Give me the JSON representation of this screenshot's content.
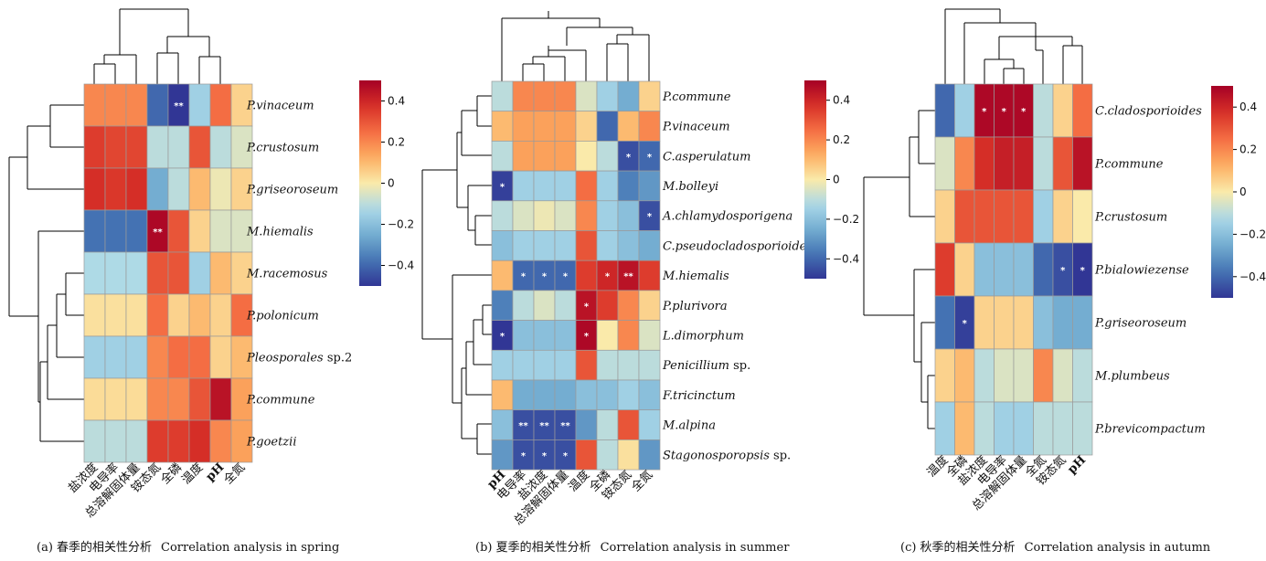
{
  "colorbar": {
    "ticks": [
      "0.4",
      "0.2",
      "0",
      "−0.2",
      "−0.4"
    ],
    "min": -0.5,
    "max": 0.5
  },
  "captions": [
    {
      "zh": "(a) 春季的相关性分析",
      "en": "Correlation analysis in spring"
    },
    {
      "zh": "(b) 夏季的相关性分析",
      "en": "Correlation analysis in summer"
    },
    {
      "zh": "(c) 秋季的相关性分析",
      "en": "Correlation analysis in autumn"
    }
  ],
  "chart_data": [
    {
      "type": "heatmap",
      "title": "",
      "x": [
        "盐浓度",
        "电导率",
        "总溶解固体量",
        "铵态氮",
        "全磷",
        "温度",
        "pH",
        "全氮"
      ],
      "y": [
        "P.vinaceum",
        "P.crustosum",
        "P.griseoroseum",
        "M.hiemalis",
        "M.racemosus",
        "P.polonicum",
        "Pleosporales sp.2",
        "P.commune",
        "P.goetzii"
      ],
      "values": [
        [
          0.2,
          0.2,
          0.2,
          -0.4,
          -0.5,
          -0.15,
          0.25,
          0.05
        ],
        [
          0.35,
          0.33,
          0.33,
          -0.1,
          -0.1,
          0.3,
          -0.1,
          -0.05
        ],
        [
          0.38,
          0.36,
          0.38,
          -0.25,
          -0.1,
          0.1,
          -0.02,
          0.05
        ],
        [
          -0.38,
          -0.38,
          -0.38,
          0.48,
          0.3,
          0.05,
          -0.05,
          -0.05
        ],
        [
          -0.12,
          -0.12,
          -0.12,
          0.3,
          0.3,
          -0.15,
          0.1,
          0.05
        ],
        [
          0.02,
          0.02,
          0.02,
          0.25,
          0.05,
          0.1,
          0.05,
          0.25
        ],
        [
          -0.15,
          -0.15,
          -0.15,
          0.2,
          0.25,
          0.25,
          0.05,
          0.1
        ],
        [
          0.03,
          0.03,
          0.03,
          0.2,
          0.2,
          0.3,
          0.45,
          0.15
        ],
        [
          -0.1,
          -0.1,
          -0.1,
          0.35,
          0.35,
          0.38,
          0.2,
          0.15
        ]
      ],
      "stars": [
        [
          null,
          null,
          null,
          null,
          "**",
          null,
          null,
          null
        ],
        [
          null,
          null,
          null,
          null,
          null,
          null,
          null,
          null
        ],
        [
          null,
          null,
          null,
          null,
          null,
          null,
          null,
          null
        ],
        [
          null,
          null,
          null,
          "**",
          null,
          null,
          null,
          null
        ],
        [
          null,
          null,
          null,
          null,
          null,
          null,
          null,
          null
        ],
        [
          null,
          null,
          null,
          null,
          null,
          null,
          null,
          null
        ],
        [
          null,
          null,
          null,
          null,
          null,
          null,
          null,
          null
        ],
        [
          null,
          null,
          null,
          null,
          null,
          null,
          null,
          null
        ],
        [
          null,
          null,
          null,
          null,
          null,
          null,
          null,
          null
        ]
      ]
    },
    {
      "type": "heatmap",
      "title": "",
      "x": [
        "pH",
        "电导率",
        "盐浓度",
        "总溶解固体量",
        "温度",
        "全磷",
        "铵态氮",
        "全氮"
      ],
      "y": [
        "P.commune",
        "P.vinaceum",
        "C.asperulatum",
        "M.bolleyi",
        "A.chlamydosporigena",
        "C.pseudocladosporioides",
        "M.hiemalis",
        "P.plurivora",
        "L.dimorphum",
        "Penicillium sp.",
        "F.tricinctum",
        "M.alpina",
        "Stagonosporopsis sp."
      ],
      "values": [
        [
          -0.1,
          0.2,
          0.2,
          0.2,
          -0.05,
          -0.15,
          -0.25,
          0.05
        ],
        [
          0.1,
          0.15,
          0.15,
          0.15,
          0.05,
          -0.4,
          0.1,
          0.2
        ],
        [
          -0.1,
          0.15,
          0.15,
          0.15,
          0.0,
          -0.1,
          -0.45,
          -0.4
        ],
        [
          -0.48,
          -0.15,
          -0.15,
          -0.15,
          0.25,
          -0.15,
          -0.35,
          -0.3
        ],
        [
          -0.1,
          -0.05,
          -0.02,
          -0.05,
          0.2,
          -0.15,
          -0.2,
          -0.45
        ],
        [
          -0.2,
          -0.15,
          -0.15,
          -0.15,
          0.3,
          -0.15,
          -0.2,
          -0.25
        ],
        [
          0.1,
          -0.4,
          -0.4,
          -0.4,
          0.35,
          0.4,
          0.45,
          0.35
        ],
        [
          -0.35,
          -0.1,
          -0.05,
          -0.1,
          0.45,
          0.35,
          0.2,
          0.05
        ],
        [
          -0.5,
          -0.2,
          -0.2,
          -0.2,
          0.48,
          0.0,
          0.2,
          -0.05
        ],
        [
          -0.15,
          -0.15,
          -0.15,
          -0.15,
          0.3,
          -0.1,
          -0.1,
          -0.1
        ],
        [
          0.1,
          -0.25,
          -0.25,
          -0.25,
          -0.2,
          -0.2,
          -0.15,
          -0.2
        ],
        [
          -0.2,
          -0.45,
          -0.45,
          -0.45,
          -0.3,
          -0.1,
          0.3,
          -0.15
        ],
        [
          -0.3,
          -0.45,
          -0.45,
          -0.45,
          0.3,
          -0.1,
          0.02,
          -0.3
        ]
      ],
      "stars": [
        [
          null,
          null,
          null,
          null,
          null,
          null,
          null,
          null
        ],
        [
          null,
          null,
          null,
          null,
          null,
          null,
          null,
          null
        ],
        [
          null,
          null,
          null,
          null,
          null,
          null,
          "*",
          "*"
        ],
        [
          "*",
          null,
          null,
          null,
          null,
          null,
          null,
          null
        ],
        [
          null,
          null,
          null,
          null,
          null,
          null,
          null,
          "*"
        ],
        [
          null,
          null,
          null,
          null,
          null,
          null,
          null,
          null
        ],
        [
          null,
          "*",
          "*",
          "*",
          null,
          "*",
          "**",
          null
        ],
        [
          null,
          null,
          null,
          null,
          "*",
          null,
          null,
          null
        ],
        [
          "*",
          null,
          null,
          null,
          "*",
          null,
          null,
          null
        ],
        [
          null,
          null,
          null,
          null,
          null,
          null,
          null,
          null
        ],
        [
          null,
          null,
          null,
          null,
          null,
          null,
          null,
          null
        ],
        [
          null,
          "**",
          "**",
          "**",
          null,
          null,
          null,
          null
        ],
        [
          null,
          "*",
          "*",
          "*",
          null,
          null,
          null,
          null
        ]
      ]
    },
    {
      "type": "heatmap",
      "title": "",
      "x": [
        "温度",
        "全磷",
        "盐浓度",
        "电导率",
        "总溶解固体量",
        "全氮",
        "铵态氮",
        "pH"
      ],
      "y": [
        "C.cladosporioides",
        "P.commune",
        "P.crustosum",
        "P.bialowiezense",
        "P.griseoroseum",
        "M.plumbeus",
        "P.brevicompactum"
      ],
      "values": [
        [
          -0.4,
          -0.15,
          0.48,
          0.48,
          0.48,
          -0.1,
          0.05,
          0.25
        ],
        [
          -0.05,
          0.2,
          0.38,
          0.42,
          0.42,
          -0.1,
          0.3,
          0.45
        ],
        [
          0.05,
          0.3,
          0.3,
          0.3,
          0.3,
          -0.15,
          0.05,
          0.0
        ],
        [
          0.35,
          0.05,
          -0.2,
          -0.2,
          -0.2,
          -0.4,
          -0.45,
          -0.5
        ],
        [
          -0.38,
          -0.48,
          0.05,
          0.05,
          0.05,
          -0.2,
          -0.25,
          -0.25
        ],
        [
          0.05,
          0.1,
          -0.1,
          -0.05,
          -0.05,
          0.2,
          -0.05,
          -0.1
        ],
        [
          -0.15,
          0.1,
          -0.1,
          -0.15,
          -0.15,
          -0.1,
          -0.1,
          -0.1
        ]
      ],
      "stars": [
        [
          null,
          null,
          "*",
          "*",
          "*",
          null,
          null,
          null
        ],
        [
          null,
          null,
          null,
          null,
          null,
          null,
          null,
          null
        ],
        [
          null,
          null,
          null,
          null,
          null,
          null,
          null,
          null
        ],
        [
          null,
          null,
          null,
          null,
          null,
          null,
          "*",
          "*"
        ],
        [
          null,
          "*",
          null,
          null,
          null,
          null,
          null,
          null
        ],
        [
          null,
          null,
          null,
          null,
          null,
          null,
          null,
          null
        ],
        [
          null,
          null,
          null,
          null,
          null,
          null,
          null,
          null
        ]
      ]
    }
  ]
}
